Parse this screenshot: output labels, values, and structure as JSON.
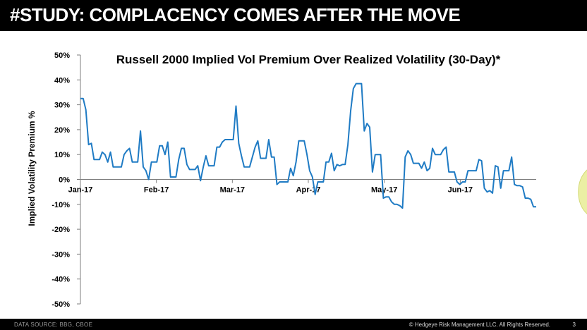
{
  "header": {
    "title": "#STUDY:  COMPLACENCY COMES AFTER THE MOVE"
  },
  "footer": {
    "source": "DATA SOURCE: BBG, CBOE",
    "copyright": "© Hedgeye Risk Management LLC. All Rights Reserved.",
    "page_number": "3"
  },
  "colors": {
    "line": "#1f7bc4",
    "highlight_fill": "#e9ee9b",
    "highlight_stroke": "#cfd66a",
    "header_bg": "#000000"
  },
  "chart_data": {
    "type": "line",
    "title": "Russell 2000 Implied Vol Premium Over Realized Volatility (30-Day)*",
    "xlabel": "",
    "ylabel": "Implied Volatility Premium %",
    "ylim": [
      -50,
      50
    ],
    "y_ticks": [
      50,
      40,
      30,
      20,
      10,
      0,
      -10,
      -20,
      -30,
      -40,
      -50
    ],
    "y_tick_labels": [
      "50%",
      "40%",
      "30%",
      "20%",
      "10%",
      "0%",
      "-10%",
      "-20%",
      "-30%",
      "-40%",
      "-50%"
    ],
    "x_ticks": [
      0,
      23.5,
      47,
      70.5,
      94,
      117.5
    ],
    "x_tick_labels": [
      "Jan-17",
      "Feb-17",
      "Mar-17",
      "Apr-17",
      "May-17",
      "Jun-17"
    ],
    "xlim": [
      0,
      141
    ],
    "series": [
      {
        "name": "Implied Vol Premium (30-Day)",
        "values": [
          32.5,
          32.5,
          28,
          14,
          14.5,
          8,
          8,
          8,
          11,
          10,
          7,
          11,
          5,
          5,
          5,
          5,
          10,
          11.5,
          12.5,
          7,
          7,
          7,
          19.5,
          5,
          3.5,
          0,
          7,
          7,
          7,
          13.5,
          13.5,
          10,
          15,
          1,
          1,
          1,
          8,
          12.5,
          12.5,
          6,
          4,
          4,
          4,
          5.5,
          -0.5,
          5,
          9.5,
          5.5,
          5.5,
          5.5,
          13,
          13,
          15,
          16,
          16,
          16,
          16,
          29.5,
          14.5,
          9.5,
          5,
          5,
          5,
          9,
          13,
          15.5,
          8.5,
          8.5,
          8.5,
          16,
          9,
          9,
          -2,
          -1,
          -1,
          -1,
          -1,
          4.5,
          1.5,
          7,
          15.5,
          15.5,
          15.5,
          10,
          3.5,
          1,
          -6,
          -1,
          -1,
          -1,
          7,
          7,
          10.5,
          3.5,
          6,
          5.5,
          6,
          6,
          14,
          27.5,
          36.5,
          38.5,
          38.5,
          38.5,
          19.5,
          22.5,
          21,
          3,
          10,
          10,
          10,
          -7.5,
          -7,
          -7,
          -9,
          -10,
          -10,
          -10.5,
          -11.5,
          9,
          11.5,
          10,
          6.5,
          6.5,
          6.5,
          4.5,
          7,
          3.5,
          4.5,
          12.5,
          10,
          10,
          10,
          12,
          13,
          3,
          3,
          3,
          -1,
          -2,
          -1,
          -1,
          3.5,
          3.5,
          3.5,
          3.5,
          8,
          7.5,
          -3.5,
          -5,
          -4.5,
          -5.5,
          5.5,
          5,
          -3.5,
          3.5,
          3.5,
          3.5,
          9,
          -2,
          -2.5,
          -2.5,
          -3,
          -7.5,
          -7.5,
          -8,
          -11,
          -11
        ]
      }
    ],
    "annotations": [
      "highlight ellipse over final decline"
    ]
  }
}
